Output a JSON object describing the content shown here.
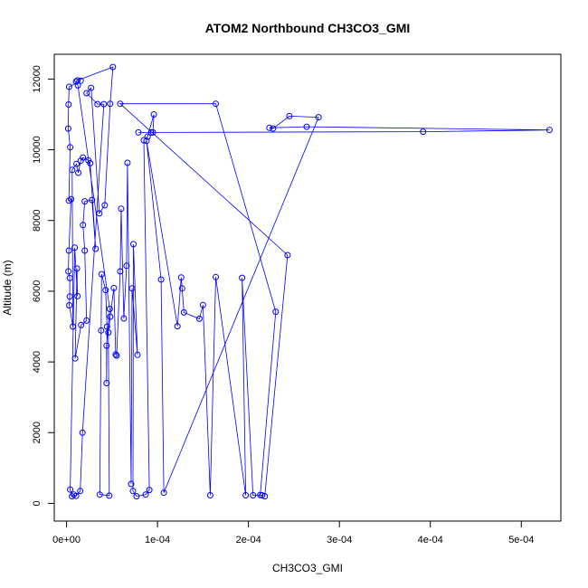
{
  "chart_data": {
    "type": "scatter",
    "title": "ATOM2 Northbound CH3CO3_GMI",
    "xlabel": "CH3CO3_GMI",
    "ylabel": "Altitude (m)",
    "xlim": [
      -1.35e-05,
      0.0005435
    ],
    "ylim": [
      -500,
      12700
    ],
    "x_ticks": [
      0,
      0.0001,
      0.0002,
      0.0003,
      0.0004,
      0.0005
    ],
    "x_tick_labels": [
      "0e+00",
      "1e-04",
      "2e-04",
      "3e-04",
      "4e-04",
      "5e-04"
    ],
    "y_ticks": [
      0,
      2000,
      4000,
      6000,
      8000,
      10000,
      12000
    ],
    "y_tick_labels": [
      "0",
      "2000",
      "4000",
      "6000",
      "8000",
      "10000",
      "12000"
    ],
    "grid": false,
    "series_style": {
      "color": "#0000ff",
      "marker": "open-circle",
      "connected": true
    },
    "series": [
      {
        "points": [
          [
            1.55e-05,
            11950
          ],
          [
            2.8e-06,
            11780
          ],
          [
            2.2e-06,
            11280
          ],
          [
            1.8e-06,
            10600
          ],
          [
            4e-06,
            10070
          ],
          [
            2.5e-06,
            8560
          ],
          [
            5e-06,
            8600
          ],
          [
            2.5e-06,
            7150
          ],
          [
            2e-06,
            6560
          ],
          [
            3.5e-06,
            6370
          ],
          [
            3.5e-06,
            5850
          ],
          [
            3e-06,
            5600
          ],
          [
            7e-06,
            5000
          ],
          [
            6.2e-06,
            9430
          ],
          [
            1.1e-05,
            9600
          ],
          [
            1.3e-05,
            9350
          ],
          [
            1.55e-05,
            9690
          ],
          [
            1.8e-05,
            9780
          ],
          [
            2.4e-05,
            9700
          ],
          [
            2.6e-05,
            9620
          ],
          [
            3.2e-05,
            7200
          ],
          [
            2.8e-05,
            8580
          ],
          [
            2e-05,
            8540
          ],
          [
            1.8e-05,
            7870
          ],
          [
            2e-05,
            7150
          ],
          [
            2.2e-05,
            5170
          ],
          [
            1.6e-05,
            5040
          ],
          [
            9.5e-06,
            4100
          ],
          [
            1.15e-05,
            6640
          ],
          [
            1.2e-05,
            5860
          ],
          [
            9e-06,
            7230
          ],
          [
            4e-06,
            390
          ],
          [
            6e-06,
            200
          ],
          [
            8e-06,
            250
          ],
          [
            1.05e-05,
            210
          ],
          [
            1.5e-05,
            350
          ],
          [
            1.75e-05,
            2000
          ],
          [
            4.1e-05,
            11290
          ],
          [
            3.4e-05,
            11290
          ],
          [
            2.2e-05,
            11600
          ],
          [
            2.7e-05,
            11750
          ],
          [
            3.6e-05,
            8200
          ],
          [
            4.2e-05,
            8430
          ],
          [
            4.8e-05,
            11300
          ],
          [
            5.1e-05,
            12340
          ],
          [
            1.2e-05,
            11960
          ],
          [
            1.05e-05,
            11930
          ],
          [
            1.25e-05,
            11820
          ],
          [
            4.75e-05,
            5500
          ],
          [
            4.4e-05,
            4460
          ],
          [
            4.4e-05,
            3400
          ],
          [
            4.45e-05,
            5000
          ],
          [
            4.3e-05,
            6030
          ],
          [
            3.85e-05,
            6480
          ],
          [
            3.8e-05,
            4890
          ],
          [
            3.65e-05,
            250
          ],
          [
            4.7e-05,
            220
          ],
          [
            4.6e-05,
            4830
          ],
          [
            4.8e-05,
            5280
          ],
          [
            5.2e-05,
            6090
          ],
          [
            5.4e-05,
            4210
          ],
          [
            5.5e-05,
            4180
          ],
          [
            5.9e-05,
            6560
          ],
          [
            6e-05,
            8330
          ],
          [
            6.3e-05,
            5230
          ],
          [
            6.6e-05,
            6720
          ],
          [
            6.7e-05,
            9630
          ],
          [
            7.1e-05,
            550
          ],
          [
            7.2e-05,
            6080
          ],
          [
            7.8e-05,
            4200
          ],
          [
            7.35e-05,
            7330
          ],
          [
            7.3e-05,
            350
          ],
          [
            7.7e-05,
            200
          ],
          [
            8.7e-05,
            250
          ],
          [
            9.1e-05,
            380
          ],
          [
            8.5e-05,
            10270
          ],
          [
            8.9e-05,
            10370
          ],
          [
            9.6e-05,
            11000
          ],
          [
            9.5e-05,
            10490
          ],
          [
            7.9e-05,
            10490
          ],
          [
            9.3e-05,
            10490
          ],
          [
            0.000392,
            10510
          ],
          [
            0.000531,
            10560
          ],
          [
            0.000264,
            10650
          ],
          [
            0.000223,
            10620
          ],
          [
            0.000227,
            10600
          ],
          [
            0.000245,
            10950
          ],
          [
            0.000277,
            10920
          ],
          [
            0.000107,
            300
          ],
          [
            0.000104,
            6330
          ],
          [
            8.8e-05,
            10250
          ],
          [
            0.000122,
            5010
          ],
          [
            0.000126,
            6390
          ],
          [
            0.000127,
            6080
          ],
          [
            0.000129,
            5400
          ],
          [
            0.000146,
            5220
          ],
          [
            0.00015,
            5610
          ],
          [
            0.000158,
            230
          ],
          [
            0.000164,
            6400
          ],
          [
            0.000197,
            230
          ],
          [
            0.000193,
            6380
          ],
          [
            0.000205,
            230
          ],
          [
            0.000215,
            230
          ],
          [
            0.000213,
            240
          ],
          [
            0.00023,
            5420
          ],
          [
            0.000164,
            11300
          ],
          [
            5.9e-05,
            11300
          ],
          [
            0.000243,
            7020
          ],
          [
            0.000218,
            200
          ]
        ]
      }
    ]
  }
}
